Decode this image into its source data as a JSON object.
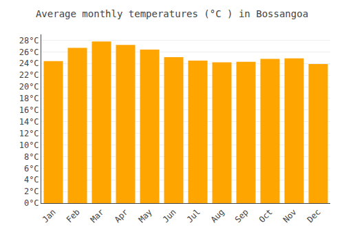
{
  "chart_data": {
    "type": "bar",
    "title": "Average monthly temperatures (°C ) in Bossangoa",
    "categories": [
      "Jan",
      "Feb",
      "Mar",
      "Apr",
      "May",
      "Jun",
      "Jul",
      "Aug",
      "Sep",
      "Oct",
      "Nov",
      "Dec"
    ],
    "values": [
      24.4,
      26.7,
      27.8,
      27.2,
      26.4,
      25.1,
      24.5,
      24.2,
      24.3,
      24.8,
      24.9,
      23.9
    ],
    "color": "#FFA500",
    "ylim": [
      0,
      29
    ],
    "yticks": [
      {
        "value": 0,
        "label": "0°C"
      },
      {
        "value": 2,
        "label": "2°C"
      },
      {
        "value": 4,
        "label": "4°C"
      },
      {
        "value": 6,
        "label": "6°C"
      },
      {
        "value": 8,
        "label": "8°C"
      },
      {
        "value": 10,
        "label": "10°C"
      },
      {
        "value": 12,
        "label": "12°C"
      },
      {
        "value": 14,
        "label": "14°C"
      },
      {
        "value": 16,
        "label": "16°C"
      },
      {
        "value": 18,
        "label": "18°C"
      },
      {
        "value": 20,
        "label": "20°C"
      },
      {
        "value": 22,
        "label": "22°C"
      },
      {
        "value": 24,
        "label": "24°C"
      },
      {
        "value": 26,
        "label": "26°C"
      },
      {
        "value": 28,
        "label": "28°C"
      }
    ],
    "grid": true
  }
}
